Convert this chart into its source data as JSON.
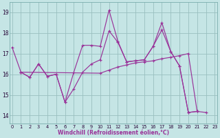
{
  "xlabel": "Windchill (Refroidissement éolien,°C)",
  "background_color": "#c5e5e5",
  "line_color": "#993399",
  "grid_color": "#99bfbf",
  "xlim": [
    -0.3,
    23.3
  ],
  "ylim": [
    13.6,
    19.5
  ],
  "yticks": [
    14,
    15,
    16,
    17,
    18,
    19
  ],
  "xticks": [
    0,
    1,
    2,
    3,
    4,
    5,
    6,
    7,
    8,
    9,
    10,
    11,
    12,
    13,
    14,
    15,
    16,
    17,
    18,
    19,
    20,
    21,
    22,
    23
  ],
  "lines": [
    {
      "x": [
        0,
        1,
        2,
        3,
        4,
        5,
        6,
        7,
        8,
        9,
        10,
        11,
        12,
        13,
        14,
        15,
        16,
        17,
        18,
        19,
        20,
        21
      ],
      "y": [
        17.3,
        16.1,
        15.85,
        16.5,
        15.9,
        16.0,
        14.65,
        16.1,
        17.4,
        17.4,
        17.35,
        19.1,
        17.6,
        16.6,
        16.65,
        16.7,
        17.35,
        18.15,
        17.1,
        16.4,
        14.15,
        14.2
      ]
    },
    {
      "x": [
        1,
        2,
        3,
        4,
        5,
        6,
        7,
        8,
        9,
        10,
        11,
        12,
        13,
        14,
        15,
        16,
        17,
        18,
        19,
        20,
        21
      ],
      "y": [
        16.1,
        15.85,
        16.5,
        15.9,
        16.0,
        14.65,
        15.3,
        16.1,
        16.5,
        16.7,
        18.1,
        17.55,
        16.6,
        16.65,
        16.7,
        17.35,
        18.5,
        17.1,
        16.4,
        14.15,
        14.2
      ]
    },
    {
      "x": [
        1,
        10,
        11,
        12,
        13,
        14,
        15,
        16,
        17,
        18,
        19,
        20,
        21,
        22
      ],
      "y": [
        16.1,
        16.05,
        16.2,
        16.35,
        16.45,
        16.55,
        16.6,
        16.65,
        16.75,
        16.82,
        16.9,
        17.0,
        14.2,
        14.15
      ]
    }
  ]
}
